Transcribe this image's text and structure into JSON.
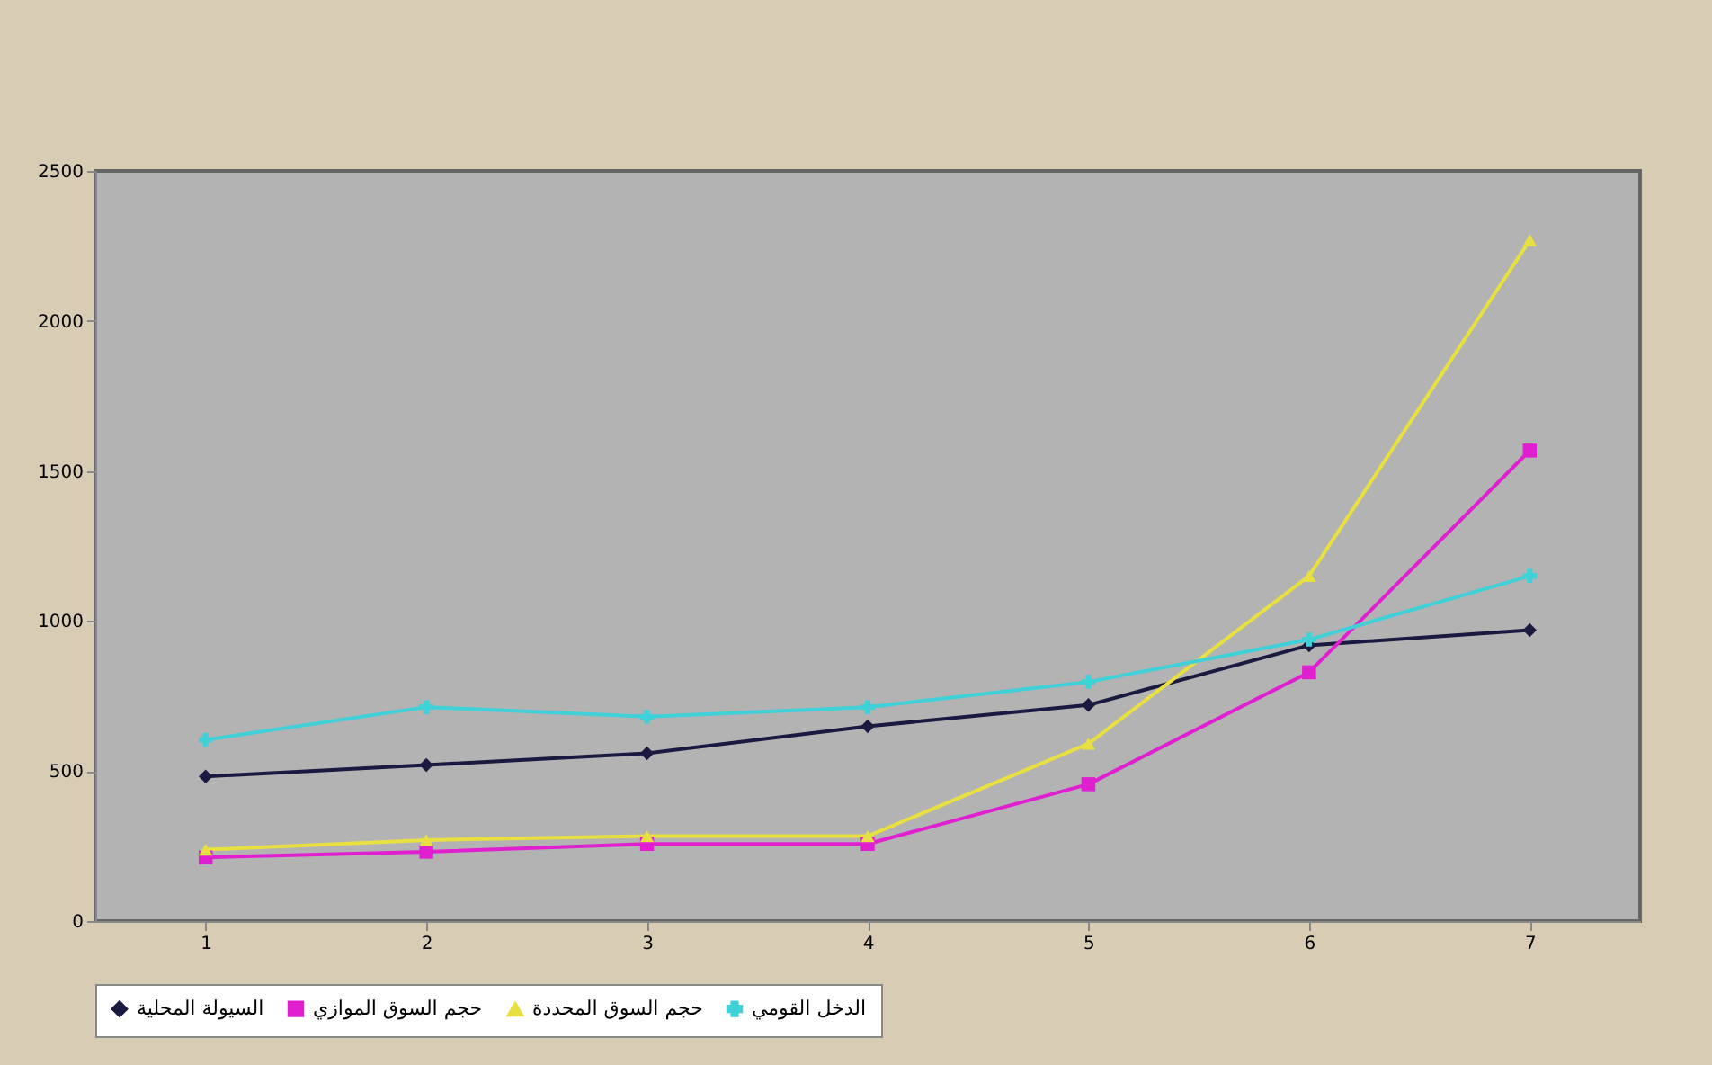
{
  "chart_data": {
    "type": "line",
    "x": [
      1,
      2,
      3,
      4,
      5,
      6,
      7
    ],
    "xlim": [
      0.5,
      7.5
    ],
    "xticks": [
      1,
      2,
      3,
      4,
      5,
      6,
      7
    ],
    "ylim": [
      0,
      2500
    ],
    "yticks": [
      0,
      500,
      1000,
      1500,
      2000,
      2500
    ],
    "grid": false,
    "legend": "bottom",
    "series": [
      {
        "name": "السيولة المحلية",
        "color": "#1a1a40",
        "marker": "diamond",
        "values": [
          482,
          520,
          559,
          649,
          720,
          919,
          970
        ]
      },
      {
        "name": "حجم السوق الموازي",
        "color": "#e020d0",
        "marker": "square",
        "values": [
          212,
          231,
          257,
          257,
          456,
          829,
          1568
        ]
      },
      {
        "name": "حجم السوق المحددة",
        "color": "#e8e040",
        "marker": "triangle",
        "values": [
          238,
          270,
          283,
          283,
          591,
          1150,
          2269
        ]
      },
      {
        "name": "الدخل القومي",
        "color": "#40d0d8",
        "marker": "cross",
        "values": [
          604,
          713,
          681,
          713,
          797,
          938,
          1150
        ]
      }
    ]
  }
}
